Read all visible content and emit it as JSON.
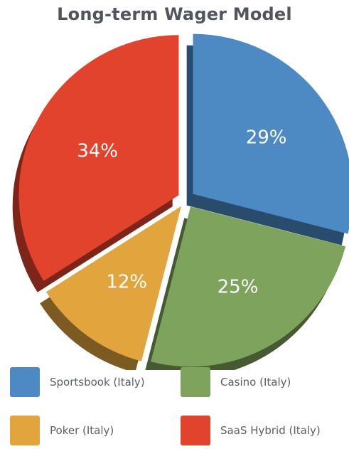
{
  "chart_data": {
    "type": "pie",
    "title": "Long-term Wager Model",
    "slices": [
      {
        "name": "Sportsbook (Italy)",
        "value": 29,
        "label": "29%",
        "color": "#4d8ac4"
      },
      {
        "name": "Casino (Italy)",
        "value": 25,
        "label": "25%",
        "color": "#7da35c"
      },
      {
        "name": "Poker (Italy)",
        "value": 12,
        "label": "12%",
        "color": "#e2a53e"
      },
      {
        "name": "SaaS Hybrid (Italy)",
        "value": 34,
        "label": "34%",
        "color": "#e2432c"
      }
    ],
    "exploded": true,
    "legend_position": "bottom"
  },
  "legend": {
    "items": [
      {
        "label": "Sportsbook (Italy)",
        "color": "#4d8ac4"
      },
      {
        "label": "Casino (Italy)",
        "color": "#7da35c"
      },
      {
        "label": "Poker (Italy)",
        "color": "#e2a53e"
      },
      {
        "label": "SaaS Hybrid (Italy)",
        "color": "#e2432c"
      }
    ]
  }
}
